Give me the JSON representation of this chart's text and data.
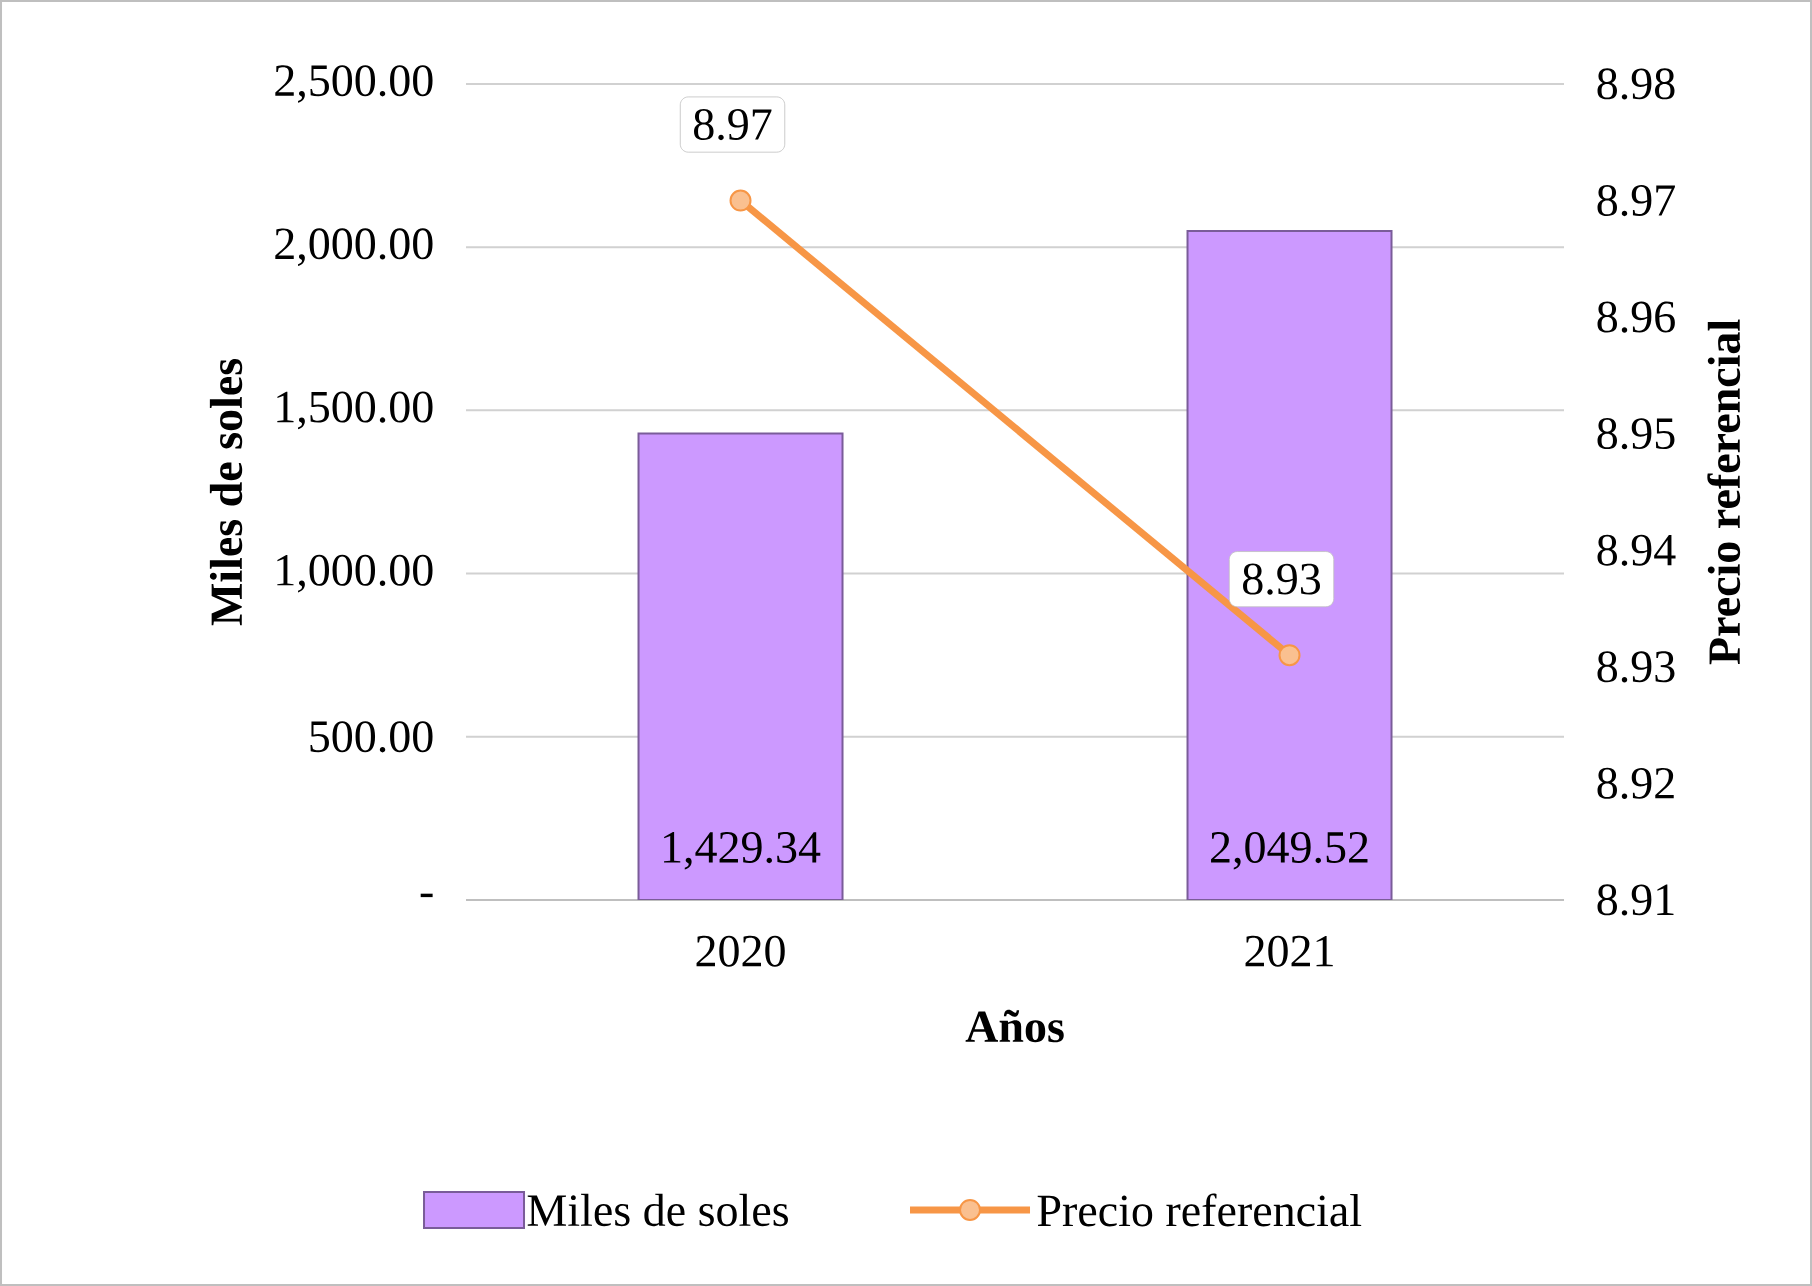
{
  "chart_data": {
    "type": "bar",
    "xlabel": "Años",
    "ylabel": "Miles de soles",
    "y2label": "Precio referencial",
    "categories": [
      "2020",
      "2021"
    ],
    "series": [
      {
        "name": "Miles de soles",
        "color": "#cc99ff",
        "values": [
          1429.34,
          2049.52
        ],
        "value_labels": [
          "1,429.34",
          "2,049.52"
        ]
      },
      {
        "name": "Precio referencial",
        "type": "line",
        "axis": "y2",
        "color": "#f79646",
        "marker": "circle",
        "values": [
          8.97,
          8.931
        ],
        "value_labels": [
          "8.97",
          "8.93"
        ]
      }
    ],
    "ylim": [
      0,
      2500
    ],
    "yticks": [
      {
        "value": 0,
        "label": "-"
      },
      {
        "value": 500,
        "label": "500.00"
      },
      {
        "value": 1000,
        "label": "1,000.00"
      },
      {
        "value": 1500,
        "label": "1,500.00"
      },
      {
        "value": 2000,
        "label": "2,000.00"
      },
      {
        "value": 2500,
        "label": "2,500.00"
      }
    ],
    "y2lim": [
      8.91,
      8.98
    ],
    "y2ticks": [
      8.91,
      8.92,
      8.93,
      8.94,
      8.95,
      8.96,
      8.97,
      8.98
    ],
    "grid": "y",
    "legend": "bottom"
  }
}
